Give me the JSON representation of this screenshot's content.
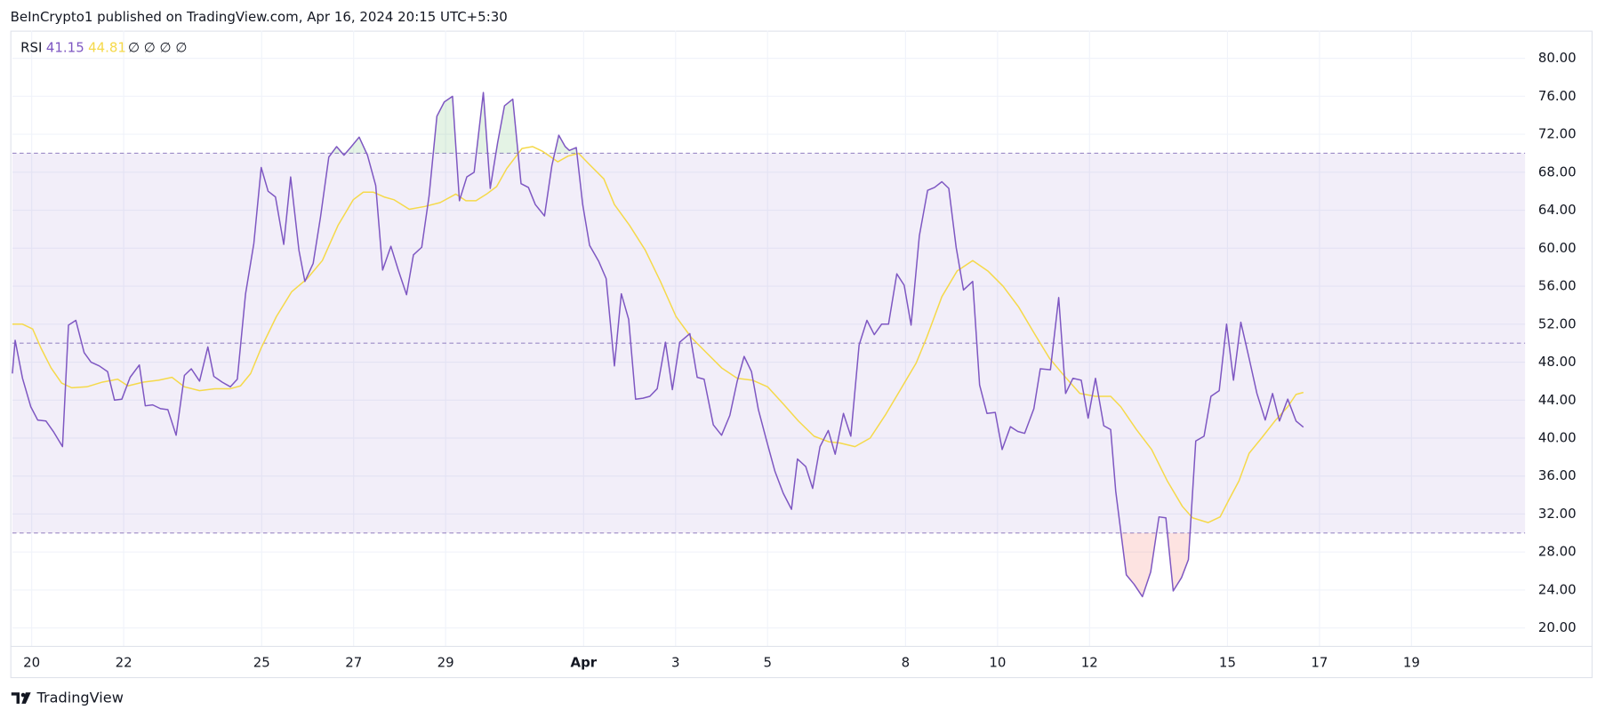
{
  "header": "BeInCrypto1 published on TradingView.com, Apr 16, 2024 20:15 UTC+5:30",
  "footer": "TradingView",
  "chart_data": {
    "type": "line",
    "title": "RSI",
    "legend_extra": "∅ ∅ ∅ ∅",
    "bands": {
      "upper": 70,
      "middle": 50,
      "lower": 30,
      "color": "#7e57c2"
    },
    "overbought_color": "#4caf50",
    "oversold_color": "#f44336",
    "grid": true,
    "xlim": [
      19.58,
      52.47
    ],
    "ylim": [
      18.06,
      82.91
    ],
    "xticks": [
      20,
      22,
      25,
      27,
      29,
      {
        "value": 32,
        "label": "Apr"
      },
      {
        "value": 34,
        "label": "3"
      },
      {
        "value": 36,
        "label": "5"
      },
      {
        "value": 39,
        "label": "8"
      },
      {
        "value": 41,
        "label": "10"
      },
      {
        "value": 43,
        "label": "12"
      },
      {
        "value": 46,
        "label": "15"
      },
      {
        "value": 48,
        "label": "17"
      },
      {
        "value": 50,
        "label": "19"
      }
    ],
    "yticks": [
      {
        "value": 20,
        "label": "20.00"
      },
      {
        "value": 24,
        "label": "24.00"
      },
      {
        "value": 28,
        "label": "28.00"
      },
      {
        "value": 32,
        "label": "32.00"
      },
      {
        "value": 36,
        "label": "36.00"
      },
      {
        "value": 40,
        "label": "40.00"
      },
      {
        "value": 44,
        "label": "44.00"
      },
      {
        "value": 48,
        "label": "48.00"
      },
      {
        "value": 52,
        "label": "52.00"
      },
      {
        "value": 56,
        "label": "56.00"
      },
      {
        "value": 60,
        "label": "60.00"
      },
      {
        "value": 64,
        "label": "64.00"
      },
      {
        "value": 68,
        "label": "68.00"
      },
      {
        "value": 72,
        "label": "72.00"
      },
      {
        "value": 76,
        "label": "76.00"
      },
      {
        "value": 80,
        "label": "80.00"
      }
    ],
    "series": [
      {
        "color": "#7e57c2",
        "x": [
          19.58,
          19.64,
          19.8,
          19.98,
          20.13,
          20.31,
          20.47,
          20.67,
          20.8,
          20.96,
          21.14,
          21.29,
          21.47,
          21.65,
          21.8,
          21.96,
          22.14,
          22.34,
          22.47,
          22.63,
          22.8,
          22.96,
          23.14,
          23.32,
          23.47,
          23.65,
          23.83,
          23.96,
          24.14,
          24.32,
          24.47,
          24.65,
          24.83,
          24.99,
          25.14,
          25.3,
          25.48,
          25.63,
          25.81,
          25.94,
          26.12,
          26.28,
          26.46,
          26.63,
          26.79,
          26.95,
          27.12,
          27.3,
          27.48,
          27.63,
          27.81,
          27.97,
          28.15,
          28.3,
          28.48,
          28.64,
          28.81,
          28.97,
          29.15,
          29.3,
          29.46,
          29.62,
          29.82,
          29.97,
          30.13,
          30.28,
          30.46,
          30.64,
          30.8,
          30.95,
          31.15,
          31.31,
          31.46,
          31.6,
          31.69,
          31.84,
          31.98,
          32.13,
          32.33,
          32.49,
          32.67,
          32.82,
          32.98,
          33.13,
          33.29,
          33.44,
          33.6,
          33.78,
          33.93,
          34.09,
          34.31,
          34.47,
          34.62,
          34.82,
          35.0,
          35.18,
          35.34,
          35.49,
          35.65,
          35.8,
          35.98,
          36.16,
          36.34,
          36.52,
          36.65,
          36.83,
          36.98,
          37.14,
          37.32,
          37.47,
          37.65,
          37.81,
          37.99,
          38.16,
          38.32,
          38.48,
          38.63,
          38.81,
          38.97,
          39.12,
          39.3,
          39.48,
          39.63,
          39.79,
          39.94,
          40.1,
          40.26,
          40.46,
          40.61,
          40.77,
          40.95,
          41.1,
          41.28,
          41.44,
          41.59,
          41.79,
          41.93,
          42.15,
          42.33,
          42.48,
          42.64,
          42.82,
          42.97,
          43.13,
          43.31,
          43.46,
          43.57,
          43.8,
          43.97,
          44.15,
          44.33,
          44.51,
          44.66,
          44.82,
          45.0,
          45.15,
          45.31,
          45.49,
          45.64,
          45.82,
          45.98,
          46.13,
          46.29,
          46.47,
          46.64,
          46.82,
          46.98,
          47.13,
          47.31,
          47.49,
          47.65
        ],
        "values": [
          46.8,
          50.3,
          46.3,
          43.3,
          41.9,
          41.8,
          40.7,
          39.1,
          51.9,
          52.4,
          49.0,
          48.0,
          47.6,
          47.0,
          44.0,
          44.1,
          46.4,
          47.7,
          43.4,
          43.5,
          43.1,
          43.0,
          40.3,
          46.6,
          47.3,
          46.0,
          49.6,
          46.5,
          45.9,
          45.4,
          46.2,
          55.2,
          60.5,
          68.5,
          66.0,
          65.4,
          60.4,
          67.5,
          59.8,
          56.5,
          58.4,
          63.3,
          69.6,
          70.7,
          69.8,
          70.7,
          71.7,
          69.8,
          66.6,
          57.7,
          60.2,
          57.7,
          55.1,
          59.3,
          60.1,
          65.5,
          73.9,
          75.4,
          76.0,
          65.0,
          67.5,
          68.0,
          76.4,
          66.3,
          71.1,
          75.0,
          75.7,
          66.8,
          66.4,
          64.6,
          63.4,
          68.7,
          71.9,
          70.7,
          70.3,
          70.6,
          64.6,
          60.3,
          58.6,
          56.8,
          47.6,
          55.2,
          52.5,
          44.1,
          44.2,
          44.4,
          45.2,
          50.1,
          45.1,
          50.1,
          51.0,
          46.4,
          46.2,
          41.4,
          40.3,
          42.4,
          46.0,
          48.6,
          47.0,
          43.0,
          39.7,
          36.5,
          34.2,
          32.5,
          37.8,
          37.0,
          34.7,
          39.1,
          40.8,
          38.3,
          42.6,
          40.2,
          49.8,
          52.4,
          50.9,
          52.0,
          52.0,
          57.3,
          56.1,
          51.9,
          61.3,
          66.1,
          66.4,
          67.0,
          66.3,
          60.1,
          55.6,
          56.5,
          45.6,
          42.6,
          42.7,
          38.8,
          41.2,
          40.7,
          40.5,
          43.1,
          47.3,
          47.2,
          54.8,
          44.7,
          46.3,
          46.1,
          42.1,
          46.3,
          41.3,
          40.9,
          34.4,
          25.6,
          24.6,
          23.3,
          25.9,
          31.7,
          31.6,
          23.9,
          25.3,
          27.2,
          39.7,
          40.2,
          44.4,
          45.0,
          52.0,
          46.1,
          52.2,
          48.4,
          44.7,
          41.9,
          44.7,
          41.8,
          44.1,
          41.8,
          41.15
        ]
      },
      {
        "color": "#f5d94a",
        "x": [
          19.58,
          19.8,
          20.02,
          20.2,
          20.42,
          20.65,
          20.87,
          21.2,
          21.54,
          21.87,
          22.09,
          22.43,
          22.76,
          23.05,
          23.32,
          23.65,
          23.98,
          24.32,
          24.54,
          24.76,
          24.99,
          25.32,
          25.65,
          25.99,
          26.32,
          26.66,
          26.99,
          27.21,
          27.43,
          27.66,
          27.88,
          28.21,
          28.55,
          28.88,
          29.22,
          29.44,
          29.66,
          29.89,
          30.11,
          30.33,
          30.66,
          30.89,
          31.11,
          31.44,
          31.66,
          31.89,
          32.11,
          32.44,
          32.67,
          33.0,
          33.34,
          33.67,
          34.01,
          34.34,
          34.67,
          35.0,
          35.34,
          35.67,
          36.0,
          36.34,
          36.67,
          37.01,
          37.34,
          37.56,
          37.9,
          38.23,
          38.57,
          38.9,
          39.23,
          39.46,
          39.79,
          40.12,
          40.46,
          40.79,
          41.12,
          41.46,
          41.79,
          42.13,
          42.46,
          42.79,
          43.13,
          43.46,
          43.68,
          44.02,
          44.35,
          44.69,
          45.02,
          45.24,
          45.58,
          45.84,
          46.02,
          46.25,
          46.47,
          46.74,
          47.03,
          47.31,
          47.49,
          47.65
        ],
        "values": [
          52.0,
          52.0,
          51.5,
          49.5,
          47.4,
          45.8,
          45.3,
          45.4,
          45.9,
          46.2,
          45.5,
          45.9,
          46.1,
          46.4,
          45.4,
          45.0,
          45.2,
          45.2,
          45.5,
          46.8,
          49.5,
          52.8,
          55.4,
          56.8,
          58.7,
          62.4,
          65.1,
          65.9,
          65.9,
          65.4,
          65.1,
          64.1,
          64.4,
          64.8,
          65.7,
          65.0,
          65.0,
          65.7,
          66.5,
          68.4,
          70.5,
          70.7,
          70.2,
          69.1,
          69.7,
          70.0,
          68.9,
          67.3,
          64.6,
          62.4,
          59.8,
          56.5,
          52.8,
          50.6,
          49.0,
          47.4,
          46.3,
          46.1,
          45.4,
          43.6,
          41.8,
          40.2,
          39.6,
          39.5,
          39.1,
          40.0,
          42.5,
          45.2,
          47.9,
          50.6,
          54.9,
          57.6,
          58.7,
          57.6,
          56.0,
          53.8,
          51.1,
          48.4,
          46.5,
          44.7,
          44.4,
          44.4,
          43.3,
          40.9,
          38.8,
          35.5,
          32.8,
          31.6,
          31.1,
          31.7,
          33.4,
          35.5,
          38.4,
          40.0,
          41.8,
          43.3,
          44.6,
          44.81
        ]
      }
    ]
  }
}
